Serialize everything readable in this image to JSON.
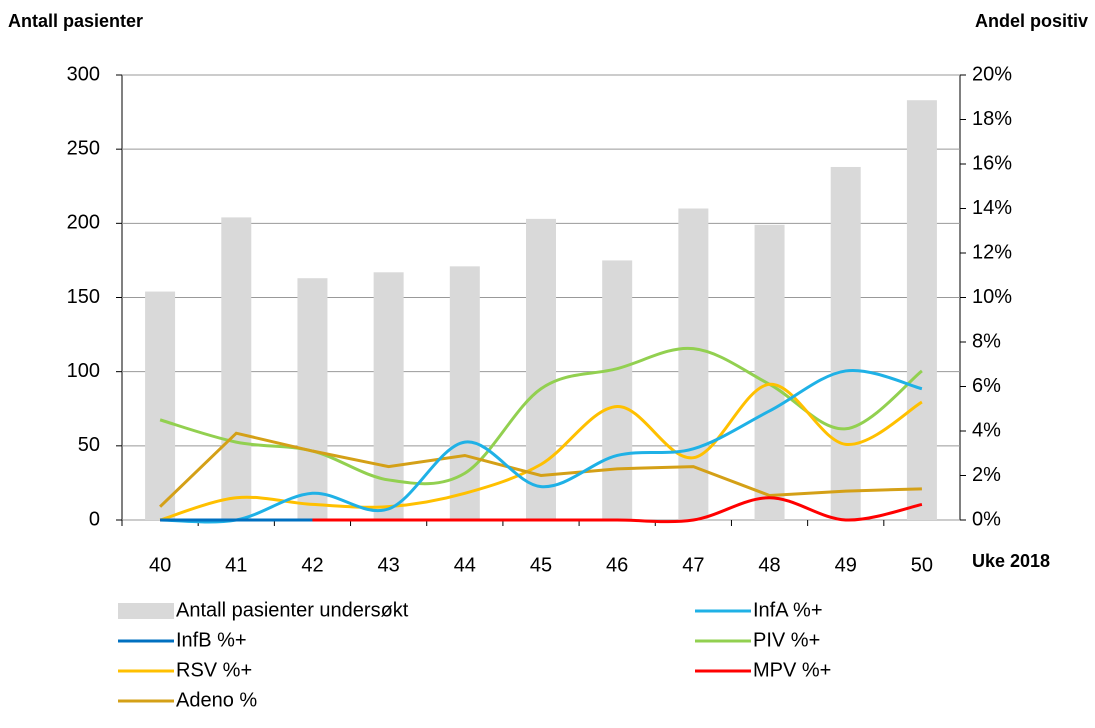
{
  "chart_data": {
    "type": "bar-line",
    "y_label": "Antall pasienter",
    "y2_label": "Andel positiv",
    "x_label": "Uke 2018",
    "categories": [
      "40",
      "41",
      "42",
      "43",
      "44",
      "45",
      "46",
      "47",
      "48",
      "49",
      "50"
    ],
    "ylim": [
      0,
      300
    ],
    "yticks": [
      0,
      50,
      100,
      150,
      200,
      250,
      300
    ],
    "y2lim": [
      0,
      20
    ],
    "y2ticks": [
      {
        "value": 0,
        "label": "0%"
      },
      {
        "value": 2,
        "label": "2%"
      },
      {
        "value": 4,
        "label": "4%"
      },
      {
        "value": 6,
        "label": "6%"
      },
      {
        "value": 8,
        "label": "8%"
      },
      {
        "value": 10,
        "label": "10%"
      },
      {
        "value": 12,
        "label": "12%"
      },
      {
        "value": 14,
        "label": "14%"
      },
      {
        "value": 16,
        "label": "16%"
      },
      {
        "value": 18,
        "label": "18%"
      },
      {
        "value": 20,
        "label": "20%"
      }
    ],
    "grid": true,
    "series": [
      {
        "name": "Antall pasienter undersøkt",
        "kind": "bar",
        "color": "#d9d9d9",
        "values": [
          154,
          204,
          163,
          167,
          171,
          203,
          175,
          210,
          199,
          238,
          283
        ]
      },
      {
        "name": "InfA %+",
        "kind": "line",
        "axis": "y2",
        "smooth": true,
        "color": "#1fb1e6",
        "values": [
          0,
          0,
          1.2,
          0.5,
          3.5,
          1.5,
          2.9,
          3.2,
          4.9,
          6.7,
          5.9
        ]
      },
      {
        "name": "InfB %+",
        "kind": "line",
        "axis": "y2",
        "smooth": true,
        "color": "#0070c0",
        "values": [
          0,
          0,
          0,
          null,
          null,
          null,
          null,
          null,
          null,
          null,
          null
        ]
      },
      {
        "name": "PIV %+",
        "kind": "line",
        "axis": "y2",
        "smooth": true,
        "color": "#92d050",
        "values": [
          4.5,
          3.5,
          3.1,
          1.8,
          2.1,
          5.9,
          6.8,
          7.7,
          6.1,
          4.1,
          6.7
        ]
      },
      {
        "name": "RSV %+",
        "kind": "line",
        "axis": "y2",
        "smooth": true,
        "color": "#ffc000",
        "values": [
          0,
          1.0,
          0.7,
          0.6,
          1.2,
          2.5,
          5.1,
          2.8,
          6.1,
          3.4,
          5.3
        ]
      },
      {
        "name": "MPV %+",
        "kind": "line",
        "axis": "y2",
        "smooth": true,
        "color": "#ff0000",
        "values": [
          0,
          0,
          0,
          0,
          0,
          0,
          0,
          0,
          1.0,
          0,
          0.7
        ]
      },
      {
        "name": "Adeno %",
        "kind": "line",
        "axis": "y2",
        "smooth": false,
        "color": "#d4a017",
        "values": [
          0.6,
          3.9,
          3.1,
          2.4,
          2.9,
          2.0,
          2.3,
          2.4,
          1.1,
          1.3,
          1.4
        ]
      }
    ]
  }
}
